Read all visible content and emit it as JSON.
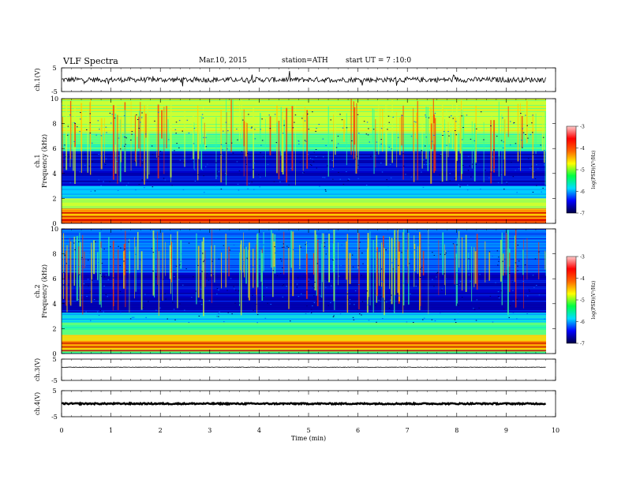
{
  "header": {
    "title": "VLF  Spectra",
    "date": "Mar.10, 2015",
    "station": "station=ATH",
    "start": "start  UT  =   7  :10:0"
  },
  "colors": {
    "spectrum": [
      "#000066",
      "#0000cc",
      "#0066ff",
      "#00ccff",
      "#33ff99",
      "#ccff33",
      "#ffcc00",
      "#ff3300",
      "#cc0000"
    ],
    "colorbar": [
      "#000044",
      "#0000ff",
      "#00ddff",
      "#00ff44",
      "#ffff00",
      "#ff6600",
      "#ff0000",
      "#ffcccc"
    ]
  },
  "chart_data": [
    {
      "type": "line",
      "panel": "ch1-waveform",
      "ylabel": "ch.1(V)",
      "ylim": [
        -5,
        5
      ],
      "yticks": [
        "5",
        "-5"
      ],
      "xlim": [
        0,
        10
      ],
      "mean": 0,
      "noise_amplitude": 1.1,
      "spikes": true
    },
    {
      "type": "heatmap",
      "panel": "ch1-spectrogram",
      "ylabel": "ch.1",
      "ylabel2": "Frequency  (kHz)",
      "ylim": [
        0,
        10
      ],
      "yticks": [
        "0",
        "2",
        "4",
        "6",
        "8",
        "10"
      ],
      "xlim": [
        0,
        9.8
      ],
      "colorbar": {
        "label": "log(PSD)(V²/Hz)",
        "ticks": [
          "-3",
          "-4",
          "-5",
          "-6",
          "-7"
        ],
        "range": [
          -7,
          -3
        ]
      },
      "bands": [
        {
          "from": 0.0,
          "to": 0.4,
          "level": 7
        },
        {
          "from": 0.4,
          "to": 1.2,
          "level": 6
        },
        {
          "from": 1.2,
          "to": 2.0,
          "level": 5
        },
        {
          "from": 2.0,
          "to": 3.0,
          "level": 3
        },
        {
          "from": 3.0,
          "to": 5.8,
          "level": 1
        },
        {
          "from": 5.8,
          "to": 7.2,
          "level": 4
        },
        {
          "from": 7.2,
          "to": 10.0,
          "level": 5
        }
      ]
    },
    {
      "type": "heatmap",
      "panel": "ch2-spectrogram",
      "ylabel": "ch.2",
      "ylabel2": "Frequency  (kHz)",
      "ylim": [
        0,
        10
      ],
      "yticks": [
        "0",
        "2",
        "4",
        "6",
        "8",
        "10"
      ],
      "xlim": [
        0,
        9.8
      ],
      "colorbar": {
        "label": "log(PSD)(V²/Hz)",
        "ticks": [
          "-3",
          "-4",
          "-5",
          "-6",
          "-7"
        ],
        "range": [
          -7,
          -3
        ]
      },
      "bands": [
        {
          "from": 0.0,
          "to": 0.3,
          "level": 4
        },
        {
          "from": 0.3,
          "to": 1.5,
          "level": 6
        },
        {
          "from": 1.5,
          "to": 2.5,
          "level": 4
        },
        {
          "from": 2.5,
          "to": 3.3,
          "level": 3
        },
        {
          "from": 3.3,
          "to": 6.5,
          "level": 1
        },
        {
          "from": 6.5,
          "to": 10.0,
          "level": 2
        }
      ]
    },
    {
      "type": "line",
      "panel": "ch3-waveform",
      "ylabel": "ch.3(V)",
      "ylim": [
        -5,
        5
      ],
      "yticks": [
        "5",
        "-5"
      ],
      "xlim": [
        0,
        10
      ],
      "mean": 1.2,
      "noise_amplitude": 0.1,
      "spikes": false
    },
    {
      "type": "line",
      "panel": "ch4-waveform",
      "ylabel": "ch.4(V)",
      "ylim": [
        -5,
        5
      ],
      "yticks": [
        "5",
        "-5"
      ],
      "xlim": [
        0,
        10
      ],
      "mean": 0,
      "noise_amplitude": 0.25,
      "spikes": false
    }
  ],
  "x_axis": {
    "label": "Time  (min)",
    "ticks": [
      "0",
      "1",
      "2",
      "3",
      "4",
      "5",
      "6",
      "7",
      "8",
      "9",
      "10"
    ],
    "range": [
      0,
      10
    ]
  }
}
